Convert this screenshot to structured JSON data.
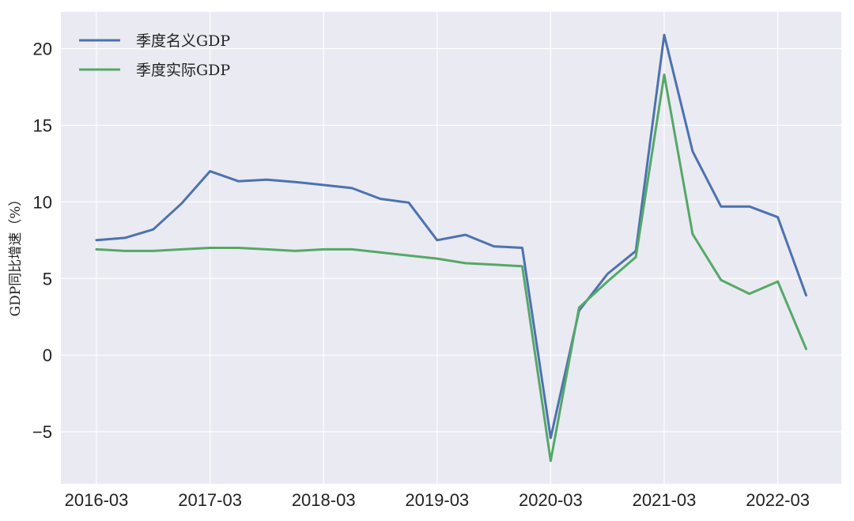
{
  "chart_data": {
    "type": "line",
    "ylabel": "GDP同比增速（%）",
    "xlabel": "",
    "title": "",
    "grid": true,
    "legend_position": "top-left",
    "ylim": [
      -8.4,
      22.4
    ],
    "yticks": [
      -5,
      0,
      5,
      10,
      15,
      20
    ],
    "ytick_labels": [
      "−5",
      "0",
      "5",
      "10",
      "15",
      "20"
    ],
    "xtick_labels": [
      "2016-03",
      "2017-03",
      "2018-03",
      "2019-03",
      "2020-03",
      "2021-03",
      "2022-03"
    ],
    "x": [
      "2016-03",
      "2016-06",
      "2016-09",
      "2016-12",
      "2017-03",
      "2017-06",
      "2017-09",
      "2017-12",
      "2018-03",
      "2018-06",
      "2018-09",
      "2018-12",
      "2019-03",
      "2019-06",
      "2019-09",
      "2019-12",
      "2020-03",
      "2020-06",
      "2020-09",
      "2020-12",
      "2021-03",
      "2021-06",
      "2021-09",
      "2021-12",
      "2022-03",
      "2022-06"
    ],
    "series": [
      {
        "name": "季度名义GDP",
        "color": "#4c72b0",
        "values": [
          7.5,
          7.65,
          8.2,
          9.9,
          12.0,
          11.35,
          11.45,
          11.3,
          11.1,
          10.9,
          10.2,
          9.95,
          7.5,
          7.85,
          7.1,
          7.0,
          -5.4,
          2.9,
          5.3,
          6.8,
          20.9,
          13.3,
          9.7,
          9.7,
          9.0,
          3.9
        ]
      },
      {
        "name": "季度实际GDP",
        "color": "#55a868",
        "values": [
          6.9,
          6.8,
          6.8,
          6.9,
          7.0,
          7.0,
          6.9,
          6.8,
          6.9,
          6.9,
          6.7,
          6.5,
          6.3,
          6.0,
          5.9,
          5.8,
          -6.9,
          3.1,
          4.8,
          6.4,
          18.3,
          7.9,
          4.9,
          4.0,
          4.8,
          0.4
        ]
      }
    ]
  }
}
